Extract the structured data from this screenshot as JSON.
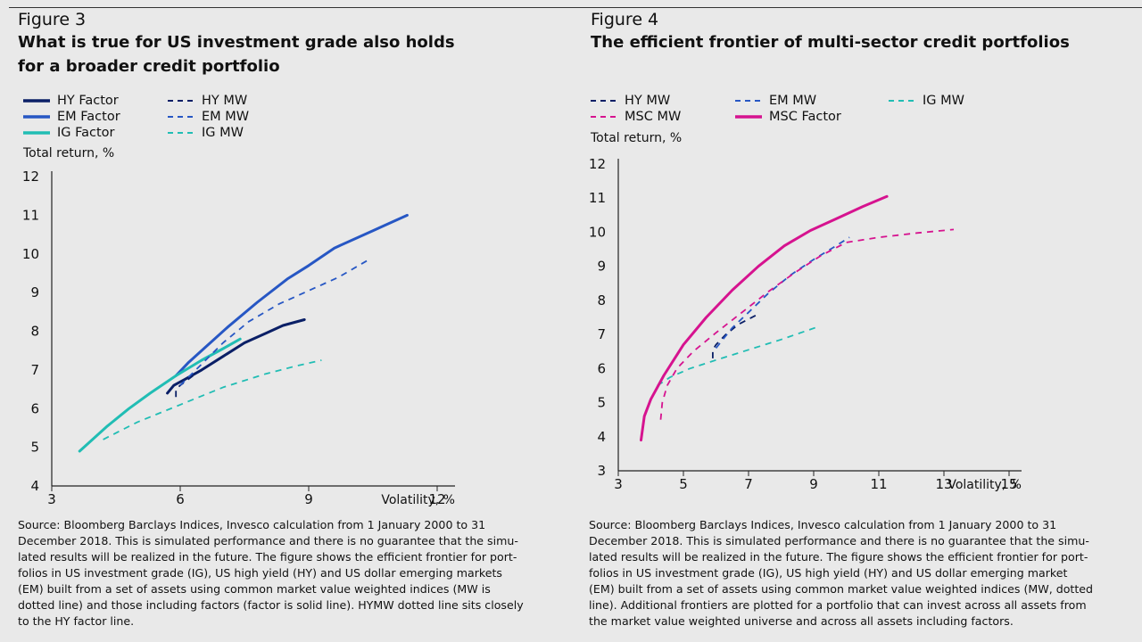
{
  "figure3": {
    "label": "Figure 3",
    "title_line1": "What is true for US investment grade also holds",
    "title_line2": "for a broader credit portfolio",
    "source_line1": "Source: Bloomberg Barclays Indices, Invesco calculation from 1 January 2000 to 31",
    "source_line2": "December 2018. This is simulated performance and there is no guarantee that the simu-",
    "source_line3": "lated results will be realized in the future. The figure shows the efficient frontier for port-",
    "source_line4": "folios in US investment grade (IG), US high yield (HY) and US dollar emerging markets",
    "source_line5": "(EM) built from a set of assets using common market value weighted indices (MW is",
    "source_line6": "dotted line) and those including factors (factor is solid line). HYMW dotted line sits closely",
    "source_line7": "to the HY factor line."
  },
  "figure4": {
    "label": "Figure 4",
    "title_line1": "The efficient frontier of multi-sector credit portfolios",
    "source_line1": "Source: Bloomberg Barclays Indices, Invesco calculation from 1 January 2000 to 31",
    "source_line2": "December 2018. This is simulated performance and there is no guarantee that the simu-",
    "source_line3": "lated results will be realized in the future. The figure shows the efficient frontier for port-",
    "source_line4": "folios in US investment grade (IG), US high yield (HY) and US dollar emerging market",
    "source_line5": "(EM) built from a set of assets using common market value weighted indices (MW, dotted",
    "source_line6": "line). Additional frontiers are plotted for a portfolio that can invest across all assets from",
    "source_line7": "the market value weighted universe and across all assets including factors."
  },
  "colors": {
    "hy": "#0a1f66",
    "em": "#2757c4",
    "ig": "#21bdb4",
    "msc": "#d6138f",
    "axis": "#222222",
    "background": "#e9e9e9"
  },
  "chart_data": [
    {
      "type": "line",
      "ylabel": "Total return, %",
      "xlabel": "Volatility, %",
      "xlim": [
        3,
        12
      ],
      "ylim": [
        4,
        12
      ],
      "xticks": [
        3,
        6,
        9,
        12
      ],
      "yticks": [
        4,
        5,
        6,
        7,
        8,
        9,
        10,
        11,
        12
      ],
      "grid": false,
      "legend": "top-left",
      "series": [
        {
          "name": "HY Factor",
          "color_key": "hy",
          "dash": false,
          "x": [
            5.7,
            5.85,
            6.1,
            6.5,
            7.0,
            7.5,
            8.0,
            8.4,
            8.9
          ],
          "y": [
            6.4,
            6.6,
            6.75,
            7.0,
            7.35,
            7.7,
            7.95,
            8.15,
            8.3
          ]
        },
        {
          "name": "EM Factor",
          "color_key": "em",
          "dash": false,
          "x": [
            5.9,
            6.2,
            6.6,
            7.1,
            7.8,
            8.5,
            9.0,
            9.6,
            10.5,
            11.3
          ],
          "y": [
            6.85,
            7.2,
            7.6,
            8.1,
            8.75,
            9.35,
            9.7,
            10.15,
            10.6,
            11.0
          ]
        },
        {
          "name": "IG Factor",
          "color_key": "ig",
          "dash": false,
          "x": [
            3.65,
            3.9,
            4.3,
            4.8,
            5.3,
            5.9,
            6.5,
            7.0,
            7.4
          ],
          "y": [
            4.9,
            5.15,
            5.55,
            6.0,
            6.4,
            6.85,
            7.25,
            7.55,
            7.8
          ]
        },
        {
          "name": "HY MW",
          "color_key": "hy",
          "dash": true,
          "x": [
            5.9,
            5.9,
            6.0,
            6.3,
            6.7,
            7.2
          ],
          "y": [
            6.3,
            6.5,
            6.6,
            6.85,
            7.15,
            7.5
          ]
        },
        {
          "name": "EM MW",
          "color_key": "em",
          "dash": true,
          "x": [
            6.0,
            6.5,
            7.0,
            7.6,
            8.3,
            9.0,
            9.7,
            10.4
          ],
          "y": [
            6.6,
            7.15,
            7.7,
            8.25,
            8.7,
            9.05,
            9.4,
            9.85
          ]
        },
        {
          "name": "IG MW",
          "color_key": "ig",
          "dash": true,
          "x": [
            4.2,
            5.0,
            6.0,
            7.0,
            8.0,
            8.7,
            9.3
          ],
          "y": [
            5.2,
            5.65,
            6.1,
            6.55,
            6.9,
            7.1,
            7.25
          ]
        }
      ]
    },
    {
      "type": "line",
      "ylabel": "Total return, %",
      "xlabel": "Volatility, %",
      "xlim": [
        3,
        15
      ],
      "ylim": [
        3,
        12
      ],
      "xticks": [
        3,
        5,
        7,
        9,
        11,
        13,
        15
      ],
      "yticks": [
        3,
        4,
        5,
        6,
        7,
        8,
        9,
        10,
        11,
        12
      ],
      "grid": false,
      "legend": "top-left",
      "series": [
        {
          "name": "HY MW",
          "color_key": "hy",
          "dash": true,
          "x": [
            5.9,
            5.9,
            6.0,
            6.3,
            6.7,
            7.3
          ],
          "y": [
            6.3,
            6.55,
            6.7,
            7.0,
            7.3,
            7.6
          ]
        },
        {
          "name": "EM MW",
          "color_key": "em",
          "dash": true,
          "x": [
            6.0,
            6.5,
            7.0,
            7.6,
            8.3,
            9.0,
            9.6,
            10.1
          ],
          "y": [
            6.6,
            7.2,
            7.65,
            8.2,
            8.75,
            9.2,
            9.55,
            9.85
          ]
        },
        {
          "name": "IG MW",
          "color_key": "ig",
          "dash": true,
          "x": [
            4.2,
            4.6,
            5.2,
            6.0,
            7.0,
            8.0,
            8.6,
            9.2
          ],
          "y": [
            5.5,
            5.75,
            6.0,
            6.25,
            6.55,
            6.85,
            7.05,
            7.25
          ]
        },
        {
          "name": "MSC MW",
          "color_key": "msc",
          "dash": true,
          "x": [
            4.3,
            4.35,
            4.5,
            4.8,
            5.3,
            6.0,
            6.8,
            7.6,
            8.4,
            9.2,
            10.0,
            11.0,
            12.2,
            13.3
          ],
          "y": [
            4.5,
            5.0,
            5.5,
            6.0,
            6.5,
            7.05,
            7.65,
            8.25,
            8.8,
            9.3,
            9.7,
            9.85,
            9.98,
            10.08
          ]
        },
        {
          "name": "MSC Factor",
          "color_key": "msc",
          "dash": false,
          "x": [
            3.7,
            3.8,
            4.0,
            4.4,
            5.0,
            5.7,
            6.5,
            7.3,
            8.1,
            8.9,
            9.7,
            10.5,
            11.25
          ],
          "y": [
            3.9,
            4.6,
            5.1,
            5.8,
            6.7,
            7.5,
            8.3,
            9.0,
            9.6,
            10.05,
            10.4,
            10.75,
            11.05
          ]
        }
      ]
    }
  ]
}
